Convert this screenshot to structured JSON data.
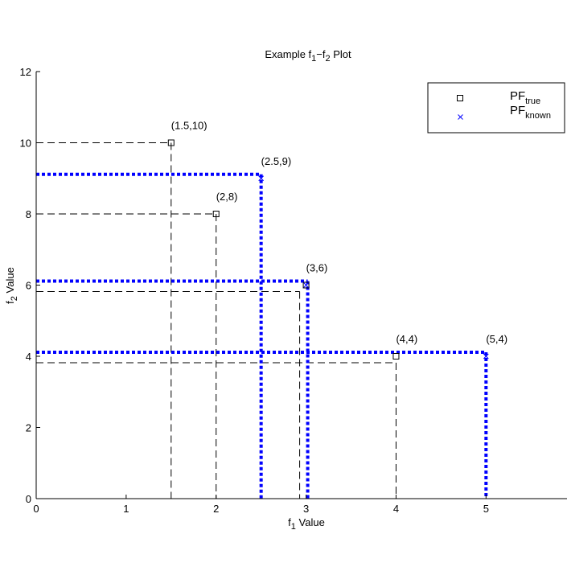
{
  "chart_data": {
    "type": "scatter",
    "title": {
      "main": "Example f",
      "s1": "1",
      "dash": "−f",
      "s2": "2",
      "tail": " Plot"
    },
    "xlabel": {
      "main": "f",
      "sub": "1",
      "tail": " Value"
    },
    "ylabel": {
      "main": "f",
      "sub": "2",
      "tail": " Value"
    },
    "xlim": [
      0,
      5.9
    ],
    "ylim": [
      0,
      12
    ],
    "x_ticks": [
      0,
      1,
      2,
      3,
      4,
      5
    ],
    "y_ticks": [
      0,
      2,
      4,
      6,
      8,
      10,
      12
    ],
    "grid": false,
    "legend_position": "top-right",
    "legend": [
      {
        "main": "PF",
        "sub": "true"
      },
      {
        "main": "PF",
        "sub": "known"
      }
    ],
    "series": [
      {
        "name": "PF true",
        "marker": "square",
        "color": "#000000",
        "line_style": "dashed",
        "points": [
          {
            "x": 1.5,
            "y": 10,
            "label": "(1.5,10)"
          },
          {
            "x": 2,
            "y": 8,
            "label": "(2,8)"
          },
          {
            "x": 3,
            "y": 6,
            "label": "(3,6)"
          },
          {
            "x": 4,
            "y": 4,
            "label": "(4,4)"
          }
        ]
      },
      {
        "name": "PF known",
        "marker": "x",
        "color": "#0000ff",
        "line_style": "dotted",
        "points": [
          {
            "x": 2.5,
            "y": 9,
            "label": "(2.5,9)"
          },
          {
            "x": 3,
            "y": 6,
            "label": ""
          },
          {
            "x": 5,
            "y": 4,
            "label": "(5,4)"
          }
        ]
      }
    ]
  }
}
